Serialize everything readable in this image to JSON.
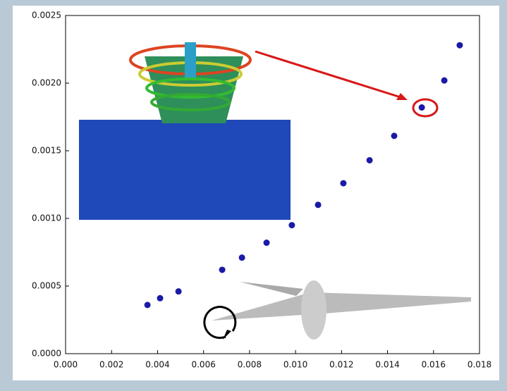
{
  "chart_data": {
    "type": "scatter",
    "series": [
      {
        "color": "#1a1aa6",
        "x": [
          0.00356,
          0.00411,
          0.00491,
          0.00681,
          0.00767,
          0.00874,
          0.00984,
          0.01098,
          0.01208,
          0.01322,
          0.01429,
          0.01549,
          0.01647,
          0.01714
        ],
        "values": [
          0.00036,
          0.00041,
          0.00046,
          0.00062,
          0.00071,
          0.00082,
          0.00095,
          0.0011,
          0.00126,
          0.00143,
          0.00161,
          0.00182,
          0.00202,
          0.00228
        ]
      }
    ],
    "xlim": [
      0,
      0.018
    ],
    "ylim": [
      0,
      0.0025
    ],
    "xticks": [
      {
        "value": 0,
        "label": "0.000"
      },
      {
        "value": 0.002,
        "label": "0.002"
      },
      {
        "value": 0.004,
        "label": "0.004"
      },
      {
        "value": 0.006,
        "label": "0.006"
      },
      {
        "value": 0.008,
        "label": "0.008"
      },
      {
        "value": 0.01,
        "label": "0.010"
      },
      {
        "value": 0.012,
        "label": "0.012"
      },
      {
        "value": 0.014,
        "label": "0.014"
      },
      {
        "value": 0.016,
        "label": "0.016"
      },
      {
        "value": 0.018,
        "label": "0.018"
      }
    ],
    "yticks": [
      {
        "value": 0,
        "label": "0.0000"
      },
      {
        "value": 0.0005,
        "label": "0.0005"
      },
      {
        "value": 0.001,
        "label": "0.0010"
      },
      {
        "value": 0.0015,
        "label": "0.0015"
      },
      {
        "value": 0.002,
        "label": "0.0020"
      },
      {
        "value": 0.0025,
        "label": "0.0025"
      }
    ]
  }
}
